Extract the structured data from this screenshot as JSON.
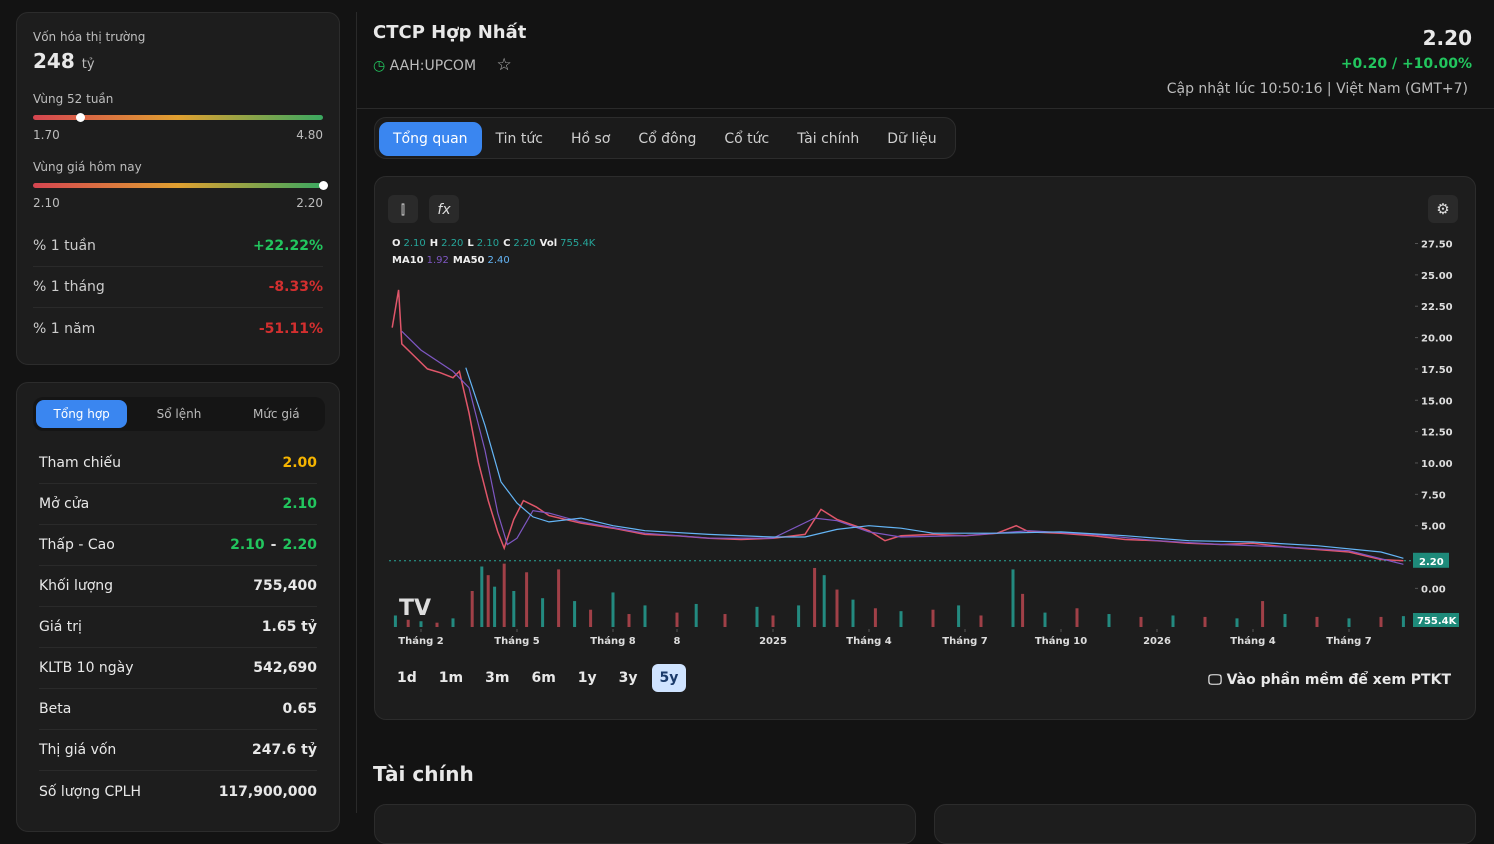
{
  "market_cap": {
    "label": "Vốn hóa thị trường",
    "value": "248",
    "unit": "tỷ"
  },
  "price": {
    "value": 2.2,
    "label": "2.20"
  },
  "range_52w": {
    "label": "Vùng 52 tuần",
    "low": {
      "value": 1.7,
      "label": "1.70"
    },
    "high": {
      "value": 4.8,
      "label": "4.80"
    }
  },
  "range_today": {
    "label": "Vùng giá hôm nay",
    "low": {
      "value": 2.1,
      "label": "2.10"
    },
    "high": {
      "value": 2.2,
      "label": "2.20"
    }
  },
  "performance": [
    [
      "% 1 tuần",
      "+22.22%"
    ],
    [
      "% 1 tháng",
      "-8.33%"
    ],
    [
      "% 1 năm",
      "-51.11%"
    ]
  ],
  "sub_tabs": [
    "Tổng hợp",
    "Sổ lệnh",
    "Mức giá"
  ],
  "summary": [
    [
      "Tham chiếu",
      "2.00"
    ],
    [
      "Mở cửa",
      "2.10"
    ],
    [
      "Thấp - Cao",
      "2.10",
      "-",
      "2.20"
    ],
    [
      "Khối lượng",
      "755,400"
    ],
    [
      "Giá trị",
      "1.65 tỷ"
    ],
    [
      "KLTB 10 ngày",
      "542,690"
    ],
    [
      "Beta",
      "0.65"
    ],
    [
      "Thị giá vốn",
      "247.6 tỷ"
    ],
    [
      "Số lượng CPLH",
      "117,900,000"
    ]
  ],
  "header": {
    "title": "CTCP Hợp Nhất",
    "ticker": "AAH:UPCOM",
    "change": "+0.20 / +10.00%",
    "updated": "Cập nhật lúc 10:50:16 | Việt Nam (GMT+7)"
  },
  "tabs": [
    "Tổng quan",
    "Tin tức",
    "Hồ sơ",
    "Cổ đông",
    "Cổ tức",
    "Tài chính",
    "Dữ liệu"
  ],
  "chart_data": {
    "type": "line",
    "legend_ohlc": [
      [
        "O",
        "2.10"
      ],
      [
        "H",
        "2.20"
      ],
      [
        "L",
        "2.10"
      ],
      [
        "C",
        "2.20"
      ],
      [
        "Vol",
        "755.4K"
      ]
    ],
    "legend_ma": [
      [
        "MA10",
        "1.92"
      ],
      [
        "MA50",
        "2.40"
      ]
    ],
    "xlim": [
      0,
      32
    ],
    "ylim": [
      -3.4,
      28.5
    ],
    "xticks": [
      {
        "value": 1,
        "label": "Tháng 2"
      },
      {
        "value": 4,
        "label": "Tháng 5"
      },
      {
        "value": 7,
        "label": "Tháng 8"
      },
      {
        "value": 9,
        "label": "8"
      },
      {
        "value": 12,
        "label": "2025"
      },
      {
        "value": 15,
        "label": "Tháng 4"
      },
      {
        "value": 18,
        "label": "Tháng 7"
      },
      {
        "value": 21,
        "label": "Tháng 10"
      },
      {
        "value": 24,
        "label": "2026"
      },
      {
        "value": 27,
        "label": "Tháng 4"
      },
      {
        "value": 30,
        "label": "Tháng 7"
      }
    ],
    "yticks": [
      {
        "value": 0,
        "label": "0.00"
      },
      {
        "value": 5,
        "label": "5.00"
      },
      {
        "value": 7.5,
        "label": "7.50"
      },
      {
        "value": 10,
        "label": "10.00"
      },
      {
        "value": 12.5,
        "label": "12.50"
      },
      {
        "value": 15,
        "label": "15.00"
      },
      {
        "value": 17.5,
        "label": "17.50"
      },
      {
        "value": 20,
        "label": "20.00"
      },
      {
        "value": 22.5,
        "label": "22.50"
      },
      {
        "value": 25,
        "label": "25.00"
      },
      {
        "value": 27.5,
        "label": "27.50"
      }
    ],
    "last_price": {
      "value": 2.2,
      "label": "2.20"
    },
    "last_volume": {
      "value": 755400,
      "label": "755.4K"
    },
    "series": [
      {
        "name": "Close",
        "color": "#e0566a",
        "x": [
          0.1,
          0.3,
          0.4,
          0.8,
          1.2,
          1.6,
          2.0,
          2.2,
          2.5,
          2.8,
          3.1,
          3.4,
          3.6,
          3.9,
          4.2,
          4.6,
          5,
          5.5,
          6,
          7,
          8,
          9,
          10,
          11,
          12,
          13,
          13.5,
          14,
          15,
          15.5,
          16,
          17,
          18,
          19,
          19.6,
          20,
          21,
          22,
          23,
          24,
          25,
          26,
          27,
          28,
          29,
          30,
          31,
          31.7
        ],
        "values": [
          20.8,
          23.8,
          19.5,
          18.5,
          17.5,
          17.2,
          16.8,
          17.3,
          14,
          10,
          7,
          4.5,
          3.2,
          5.5,
          7,
          6.5,
          5.8,
          5.5,
          5.2,
          4.8,
          4.3,
          4.2,
          4.0,
          3.9,
          4.0,
          4.3,
          6.3,
          5.5,
          4.6,
          3.8,
          4.2,
          4.3,
          4.2,
          4.4,
          5.0,
          4.5,
          4.4,
          4.2,
          3.9,
          3.8,
          3.6,
          3.5,
          3.6,
          3.3,
          3.1,
          2.9,
          2.3,
          2.2
        ]
      },
      {
        "name": "MA10",
        "color": "#7e57c2",
        "x": [
          0.4,
          1,
          2,
          2.5,
          3,
          3.4,
          3.7,
          4,
          4.5,
          5,
          6,
          8,
          10,
          12,
          13.3,
          14,
          15,
          16,
          18,
          20,
          22,
          24,
          26,
          28,
          30,
          31.7
        ],
        "values": [
          20.5,
          19,
          17.3,
          16,
          11,
          6,
          3.5,
          4,
          6.2,
          6,
          5.3,
          4.4,
          4.0,
          4.0,
          5.6,
          5.4,
          4.5,
          4.1,
          4.2,
          4.6,
          4.3,
          3.8,
          3.5,
          3.3,
          3.0,
          1.92
        ]
      },
      {
        "name": "MA50",
        "color": "#64b5f6",
        "x": [
          2.4,
          3,
          3.5,
          4,
          4.5,
          5,
          6,
          7,
          8,
          10,
          12,
          13,
          14,
          15,
          16,
          17,
          19,
          21,
          23,
          25,
          27,
          29,
          31,
          31.7
        ],
        "values": [
          17.6,
          13,
          8.5,
          6.8,
          5.7,
          5.3,
          5.6,
          5.0,
          4.6,
          4.3,
          4.1,
          4.1,
          4.7,
          5.0,
          4.8,
          4.4,
          4.4,
          4.5,
          4.2,
          3.8,
          3.7,
          3.4,
          2.9,
          2.4
        ]
      }
    ],
    "volume": {
      "color": "#26a69a",
      "vlim": [
        0,
        5000000
      ],
      "x": [
        0.2,
        0.6,
        1,
        1.5,
        2,
        2.6,
        2.9,
        3.1,
        3.3,
        3.6,
        3.9,
        4.3,
        4.8,
        5.3,
        5.8,
        6.3,
        7,
        7.5,
        8,
        9,
        9.6,
        10.5,
        11.5,
        12,
        12.8,
        13.3,
        13.6,
        14,
        14.5,
        15.2,
        16,
        17,
        17.8,
        18.5,
        19.5,
        19.8,
        20.5,
        21.5,
        22.5,
        23.5,
        24.5,
        25.5,
        26.5,
        27.3,
        28,
        29,
        30,
        31,
        31.7
      ],
      "values": [
        800000,
        500000,
        400000,
        300000,
        600000,
        2500000,
        4200000,
        3600000,
        2800000,
        4400000,
        2500000,
        3800000,
        2000000,
        4000000,
        1800000,
        1200000,
        2400000,
        900000,
        1500000,
        1000000,
        1600000,
        900000,
        1400000,
        800000,
        1500000,
        4100000,
        3600000,
        2600000,
        1900000,
        1300000,
        1100000,
        1200000,
        1500000,
        800000,
        4000000,
        2300000,
        1000000,
        1300000,
        900000,
        700000,
        800000,
        700000,
        600000,
        1800000,
        900000,
        700000,
        600000,
        700000,
        755400
      ]
    }
  },
  "range_buttons": [
    "1d",
    "1m",
    "3m",
    "6m",
    "1y",
    "3y",
    "5y"
  ],
  "range_active": 6,
  "ptkt_link": "Vào phần mềm để xem PTKT",
  "section_title": "Tài chính"
}
